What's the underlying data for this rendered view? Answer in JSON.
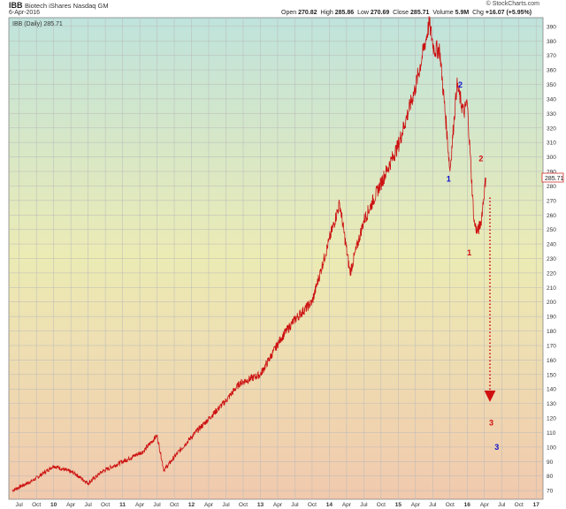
{
  "header": {
    "symbol": "IBB",
    "name": "Biotech iShares  Nasdaq GM",
    "date": "6-Apr-2016",
    "open_label": "Open",
    "open": "270.82",
    "high_label": "High",
    "high": "285.86",
    "low_label": "Low",
    "low": "270.69",
    "close_label": "Close",
    "close": "285.71",
    "volume_label": "Volume",
    "volume": "5.9M",
    "chg_label": "Chg",
    "chg": "+16.07 (+5.95%)",
    "brand": "© StockCharts.com"
  },
  "chart_data": {
    "type": "line",
    "title": "IBB (Daily) 285.71",
    "last_value_label": "285.71",
    "y_ticks": [
      70,
      80,
      90,
      100,
      110,
      120,
      130,
      140,
      150,
      160,
      170,
      180,
      190,
      200,
      210,
      220,
      230,
      240,
      250,
      260,
      270,
      280,
      290,
      300,
      310,
      320,
      330,
      340,
      350,
      360,
      370,
      380,
      390
    ],
    "ylim": [
      64,
      396
    ],
    "x_ticks": [
      "Jul",
      "Oct",
      "10",
      "Apr",
      "Jul",
      "Oct",
      "11",
      "Apr",
      "Jul",
      "Oct",
      "12",
      "Apr",
      "Jul",
      "Oct",
      "13",
      "Apr",
      "Jul",
      "Oct",
      "14",
      "Apr",
      "Jul",
      "Oct",
      "15",
      "Apr",
      "Jul",
      "Oct",
      "16",
      "Apr",
      "Jul",
      "Oct",
      "17"
    ],
    "series": [
      {
        "x": [
          2009.4,
          2009.7,
          2010.0,
          2010.3,
          2010.5,
          2010.7,
          2011.0,
          2011.3,
          2011.5,
          2011.6,
          2011.8,
          2012.0,
          2012.3,
          2012.5,
          2012.7,
          2013.0,
          2013.3,
          2013.5,
          2013.75,
          2014.0,
          2014.15,
          2014.3,
          2014.5,
          2014.75,
          2015.0,
          2015.25,
          2015.45,
          2015.52,
          2015.6,
          2015.7,
          2015.75,
          2015.85,
          2015.95,
          2016.0,
          2016.1,
          2016.15,
          2016.2,
          2016.27
        ],
        "y": [
          70,
          77,
          87,
          82,
          75,
          83,
          90,
          97,
          108,
          84,
          96,
          107,
          122,
          132,
          144,
          150,
          175,
          188,
          200,
          243,
          268,
          220,
          256,
          282,
          308,
          348,
          392,
          374,
          374,
          320,
          290,
          350,
          330,
          338,
          255,
          248,
          255,
          285.71
        ]
      }
    ],
    "annotations": [
      {
        "text": "2",
        "color": "#1010cc",
        "x": 2015.9,
        "y": 348
      },
      {
        "text": "1",
        "color": "#1010cc",
        "x": 2015.73,
        "y": 283
      },
      {
        "text": "2",
        "color": "#d01010",
        "x": 2016.2,
        "y": 297
      },
      {
        "text": "1",
        "color": "#d01010",
        "x": 2016.03,
        "y": 232
      },
      {
        "text": "3",
        "color": "#d01010",
        "x": 2016.35,
        "y": 115
      },
      {
        "text": "3",
        "color": "#1010cc",
        "x": 2016.43,
        "y": 98
      }
    ],
    "projection": {
      "color": "#d01010",
      "from": [
        2016.33,
        272
      ],
      "to": [
        2016.33,
        135
      ]
    }
  }
}
